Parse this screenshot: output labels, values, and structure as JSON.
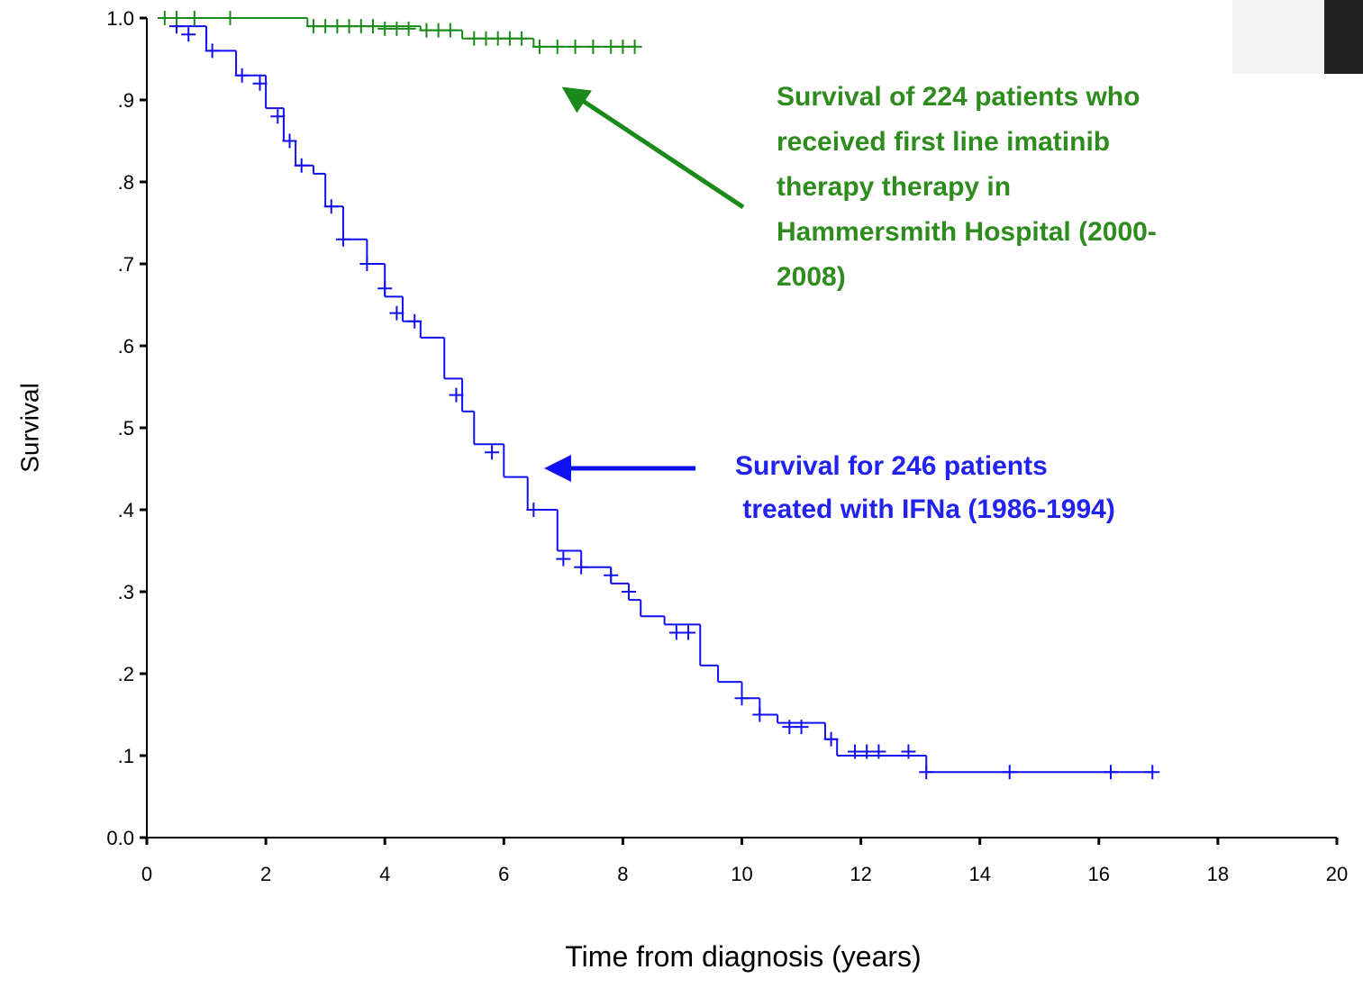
{
  "chart_data": {
    "type": "line",
    "step": "post",
    "x_label": "Time from diagnosis (years)",
    "y_label": "Survival",
    "xlim": [
      0,
      20
    ],
    "xticks": [
      0,
      2,
      4,
      6,
      8,
      10,
      12,
      14,
      16,
      18,
      20
    ],
    "ylim": [
      0,
      1
    ],
    "yticks": [
      {
        "value": 0,
        "label": "0.0"
      },
      {
        "value": 0.1,
        "label": ".1"
      },
      {
        "value": 0.2,
        "label": ".2"
      },
      {
        "value": 0.3,
        "label": ".3"
      },
      {
        "value": 0.4,
        "label": ".4"
      },
      {
        "value": 0.5,
        "label": ".5"
      },
      {
        "value": 0.6,
        "label": ".6"
      },
      {
        "value": 0.7,
        "label": ".7"
      },
      {
        "value": 0.8,
        "label": ".8"
      },
      {
        "value": 0.9,
        "label": ".9"
      },
      {
        "value": 1,
        "label": "1.0"
      }
    ],
    "series": [
      {
        "color": "#1010f0",
        "x": [
          0.3,
          0.5,
          1.0,
          1.5,
          2.0,
          2.3,
          2.5,
          2.8,
          3.0,
          3.3,
          3.7,
          4.0,
          4.3,
          4.6,
          5.0,
          5.3,
          5.5,
          6.0,
          6.4,
          6.9,
          7.3,
          7.8,
          8.1,
          8.3,
          8.7,
          9.3,
          9.6,
          10.0,
          10.3,
          10.6,
          11.4,
          11.6,
          13.1,
          16.9
        ],
        "values": [
          1.0,
          0.99,
          0.96,
          0.93,
          0.89,
          0.85,
          0.82,
          0.81,
          0.77,
          0.73,
          0.7,
          0.66,
          0.63,
          0.61,
          0.56,
          0.52,
          0.48,
          0.44,
          0.4,
          0.35,
          0.33,
          0.31,
          0.29,
          0.27,
          0.26,
          0.21,
          0.19,
          0.17,
          0.15,
          0.14,
          0.12,
          0.1,
          0.08,
          0.08
        ],
        "censored": {
          "x": [
            0.5,
            0.7,
            1.1,
            1.6,
            1.9,
            2.2,
            2.4,
            2.6,
            3.1,
            3.3,
            3.7,
            4.0,
            4.2,
            4.5,
            5.2,
            5.8,
            6.5,
            7.0,
            7.3,
            7.8,
            8.1,
            8.9,
            9.1,
            10.0,
            10.3,
            10.8,
            11.0,
            11.5,
            11.9,
            12.1,
            12.3,
            12.8,
            13.1,
            14.5,
            16.2,
            16.9
          ],
          "values": [
            0.99,
            0.98,
            0.96,
            0.93,
            0.92,
            0.88,
            0.85,
            0.82,
            0.77,
            0.73,
            0.7,
            0.67,
            0.64,
            0.63,
            0.54,
            0.47,
            0.4,
            0.34,
            0.33,
            0.32,
            0.3,
            0.25,
            0.25,
            0.17,
            0.15,
            0.135,
            0.135,
            0.12,
            0.105,
            0.105,
            0.105,
            0.105,
            0.08,
            0.08,
            0.08,
            0.08
          ]
        }
      },
      {
        "color": "#1a8a1a",
        "x": [
          0.3,
          2.7,
          4.6,
          5.3,
          6.5,
          8.2
        ],
        "values": [
          1.0,
          0.99,
          0.985,
          0.975,
          0.965,
          0.965
        ],
        "censored": {
          "x": [
            0.3,
            0.5,
            0.8,
            1.4,
            2.8,
            3.0,
            3.2,
            3.4,
            3.6,
            3.8,
            4.0,
            4.2,
            4.4,
            4.7,
            4.9,
            5.1,
            5.5,
            5.7,
            5.9,
            6.1,
            6.3,
            6.6,
            6.9,
            7.2,
            7.5,
            7.8,
            8.0,
            8.2
          ],
          "values": [
            1.0,
            1.0,
            1.0,
            1.0,
            0.99,
            0.99,
            0.99,
            0.99,
            0.99,
            0.99,
            0.987,
            0.987,
            0.987,
            0.985,
            0.985,
            0.985,
            0.975,
            0.975,
            0.975,
            0.975,
            0.975,
            0.965,
            0.965,
            0.965,
            0.965,
            0.965,
            0.965,
            0.965
          ]
        }
      }
    ],
    "annotations": [
      {
        "color": "#2e8b1e",
        "lines": [
          "Survival of 224 patients who",
          "received first line imatinib",
          "therapy therapy in",
          "Hammersmith Hospital (2000-",
          "2008)"
        ]
      },
      {
        "color": "#2222ee",
        "lines": [
          "Survival for 246 patients",
          " treated with IFNa (1986-1994)"
        ]
      }
    ]
  }
}
